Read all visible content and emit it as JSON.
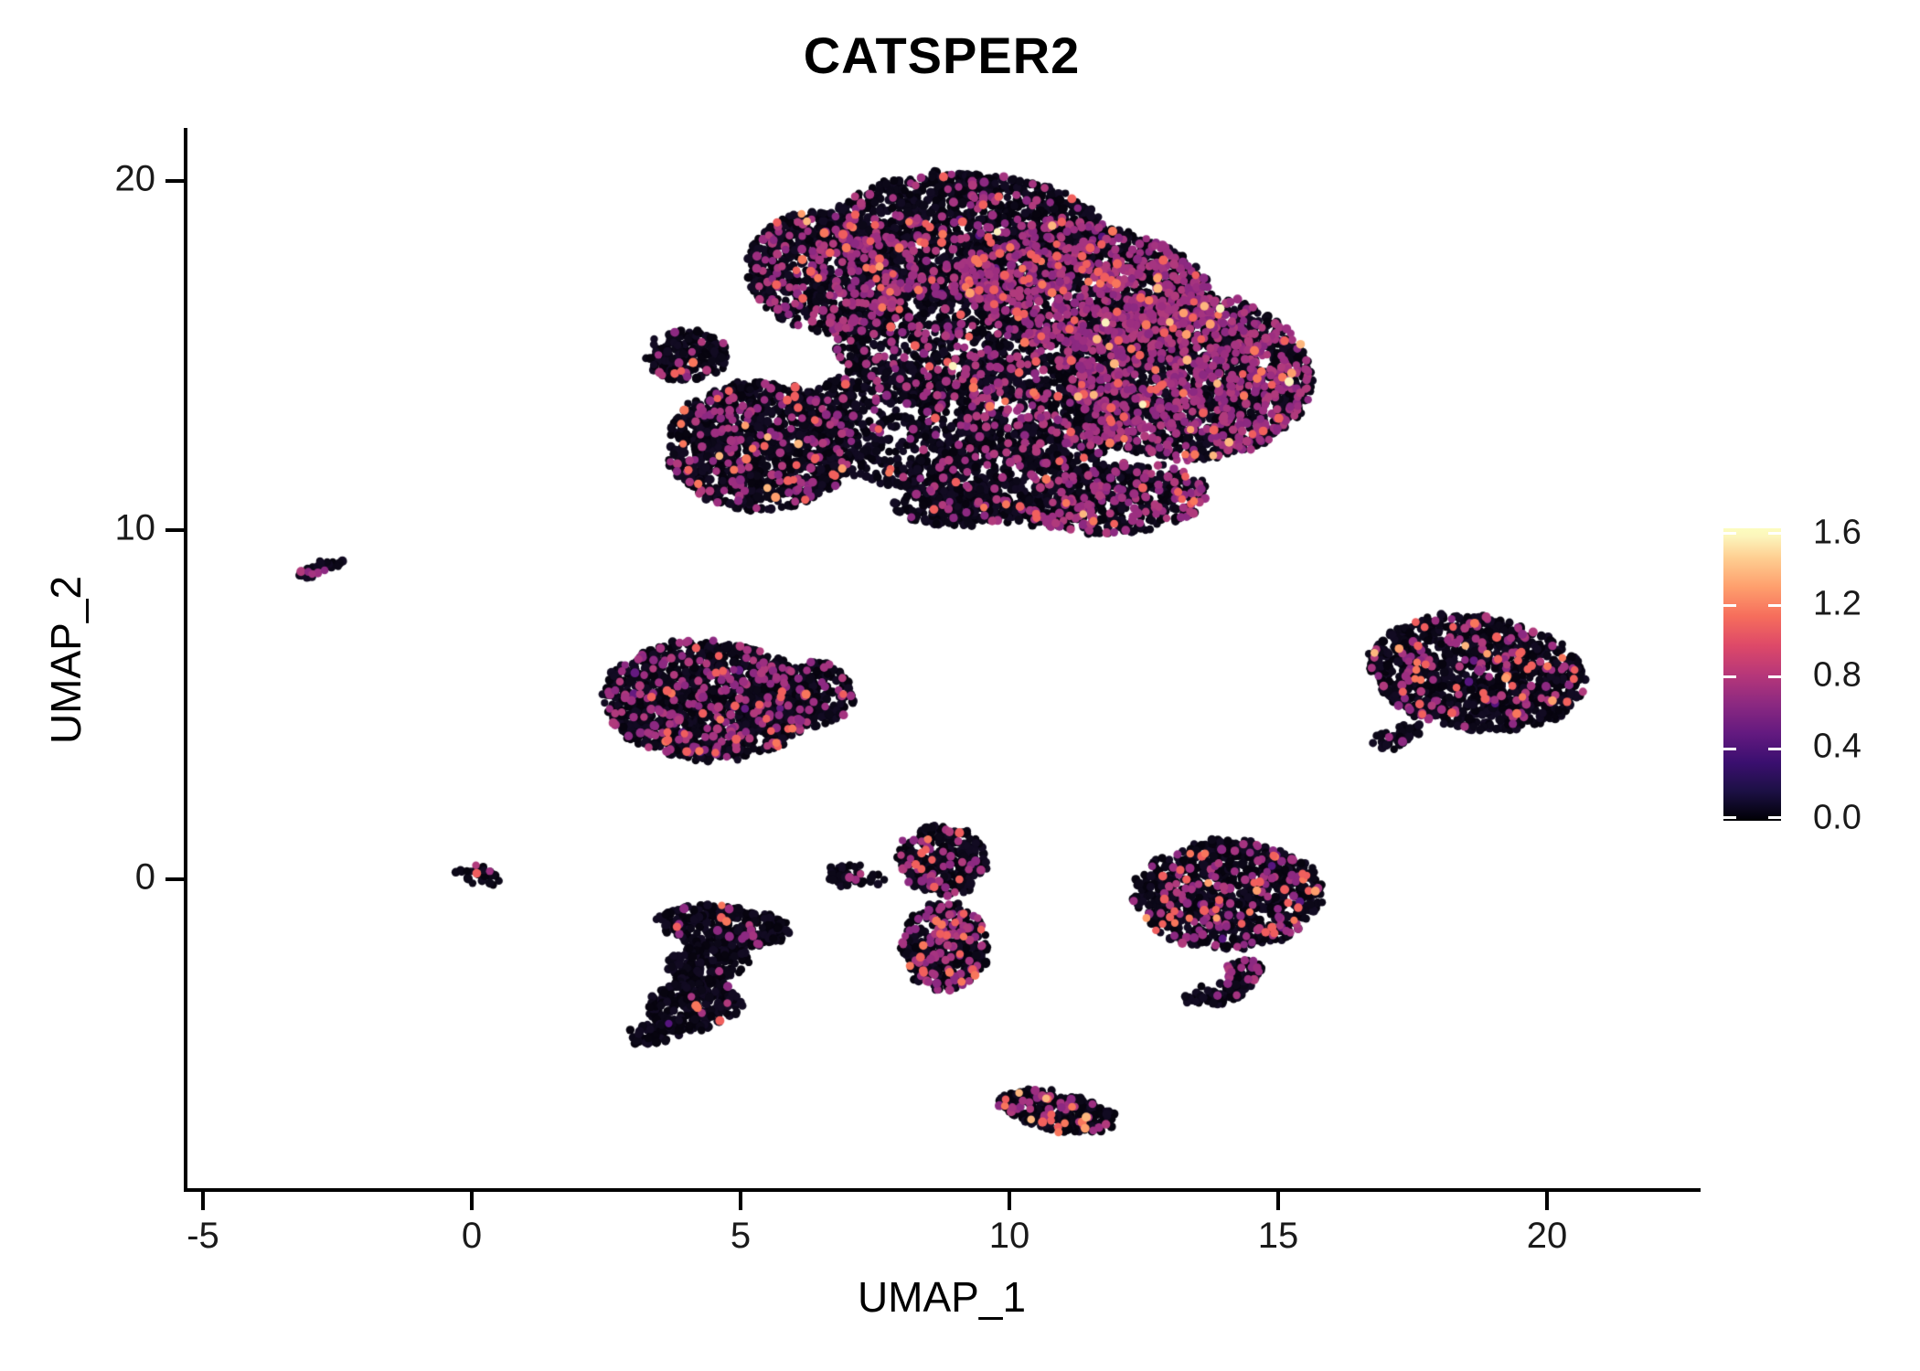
{
  "chart_data": {
    "type": "scatter",
    "subtype": "umap-feature-plot",
    "title": "CATSPER2",
    "xlabel": "UMAP_1",
    "ylabel": "UMAP_2",
    "xlim": [
      -5.3,
      22.5
    ],
    "ylim": [
      -8.9,
      21.5
    ],
    "grid": false,
    "x_ticks": [
      "-5",
      "0",
      "5",
      "10",
      "15",
      "20"
    ],
    "y_ticks": [
      "20",
      "10",
      "0"
    ],
    "colorbar": {
      "position": "right",
      "palette_name": "magma",
      "value_range": [
        0.0,
        1.65
      ],
      "tick_labels": [
        "1.6",
        "1.2",
        "0.8",
        "0.4",
        "0.0"
      ],
      "gradient_stops": [
        "#000004",
        "#1c1044",
        "#3b0f70",
        "#641a80",
        "#8c2981",
        "#b73779",
        "#de4968",
        "#f66e5c",
        "#fe9f6d",
        "#fecf92",
        "#fcfdbf"
      ]
    },
    "point_palette": {
      "black": [
        "#07040f",
        "#0c0818",
        "#120b22"
      ],
      "darkpurple": [
        "#56157e",
        "#641a80"
      ],
      "purple": [
        "#8c2981",
        "#9c2e80",
        "#a53480",
        "#b03a7c"
      ],
      "salmon": [
        "#ef5d5e",
        "#f1605d",
        "#f8765c"
      ],
      "peach": [
        "#fe9f6d",
        "#fdb77e"
      ],
      "cream": [
        "#fbf2bd"
      ]
    },
    "point_order": [
      "black",
      "darkpurple",
      "purple",
      "salmon",
      "peach",
      "cream"
    ],
    "point_radius_px": 4.6,
    "clusters": [
      {
        "name": "large-top-cluster",
        "components": [
          {
            "cx": 9.2,
            "cy": 18.4,
            "rx": 2.6,
            "ry": 1.85,
            "rot": -5,
            "n": 1500,
            "mix": {
              "black": 0.86,
              "purple": 0.12,
              "salmon": 0.016,
              "darkpurple": 0.003,
              "cream": 0.001
            }
          },
          {
            "cx": 6.7,
            "cy": 17.4,
            "rx": 1.55,
            "ry": 1.8,
            "rot": 15,
            "n": 950,
            "mix": {
              "black": 0.795,
              "purple": 0.175,
              "salmon": 0.026,
              "peach": 0.004
            }
          },
          {
            "cx": 5.4,
            "cy": 12.4,
            "rx": 1.75,
            "ry": 1.85,
            "rot": 0,
            "n": 1150,
            "mix": {
              "black": 0.856,
              "purple": 0.11,
              "salmon": 0.028,
              "peach": 0.006
            }
          },
          {
            "cx": 4.0,
            "cy": 15.0,
            "rx": 0.75,
            "ry": 0.7,
            "rot": 20,
            "n": 180,
            "mix": {
              "black": 0.93,
              "purple": 0.06,
              "salmon": 0.01
            }
          },
          {
            "cx": 8.7,
            "cy": 15.6,
            "rx": 2.0,
            "ry": 2.0,
            "rot": 0,
            "n": 900,
            "mix": {
              "black": 0.82,
              "purple": 0.165,
              "salmon": 0.014,
              "cream": 0.001
            }
          },
          {
            "cx": 7.9,
            "cy": 12.9,
            "rx": 1.9,
            "ry": 1.6,
            "rot": -20,
            "n": 520,
            "mix": {
              "black": 0.92,
              "purple": 0.07,
              "salmon": 0.01
            }
          },
          {
            "cx": 9.9,
            "cy": 11.3,
            "rx": 1.9,
            "ry": 1.1,
            "rot": -10,
            "n": 480,
            "mix": {
              "black": 0.9,
              "purple": 0.085,
              "salmon": 0.015
            }
          },
          {
            "cx": 11.4,
            "cy": 16.9,
            "rx": 2.4,
            "ry": 1.8,
            "rot": -18,
            "n": 1500,
            "mix": {
              "black": 0.7,
              "purple": 0.272,
              "salmon": 0.022,
              "peach": 0.005,
              "cream": 0.001
            }
          },
          {
            "cx": 13.3,
            "cy": 14.4,
            "rx": 2.3,
            "ry": 2.4,
            "rot": 12,
            "n": 2100,
            "mix": {
              "black": 0.68,
              "purple": 0.293,
              "salmon": 0.021,
              "peach": 0.005,
              "cream": 0.001
            }
          },
          {
            "cx": 10.7,
            "cy": 13.4,
            "rx": 1.7,
            "ry": 1.6,
            "rot": 0,
            "n": 700,
            "mix": {
              "black": 0.8,
              "purple": 0.182,
              "salmon": 0.016,
              "peach": 0.002
            }
          },
          {
            "cx": 12.0,
            "cy": 10.9,
            "rx": 1.7,
            "ry": 1.0,
            "rot": 8,
            "n": 520,
            "mix": {
              "black": 0.76,
              "purple": 0.22,
              "salmon": 0.018,
              "peach": 0.002
            }
          },
          {
            "cx": 9.0,
            "cy": 10.7,
            "rx": 1.1,
            "ry": 0.6,
            "rot": 0,
            "n": 180,
            "mix": {
              "black": 0.92,
              "purple": 0.06,
              "salmon": 0.02
            }
          }
        ]
      },
      {
        "name": "left-middle-cluster",
        "components": [
          {
            "cx": 4.4,
            "cy": 5.1,
            "rx": 1.95,
            "ry": 1.7,
            "rot": -12,
            "n": 1350,
            "mix": {
              "black": 0.843,
              "purple": 0.135,
              "salmon": 0.018,
              "darkpurple": 0.004
            }
          },
          {
            "cx": 6.1,
            "cy": 5.3,
            "rx": 1.0,
            "ry": 1.0,
            "rot": 0,
            "n": 320,
            "mix": {
              "black": 0.9,
              "purple": 0.09,
              "salmon": 0.01
            }
          }
        ]
      },
      {
        "name": "right-cluster",
        "components": [
          {
            "cx": 18.7,
            "cy": 5.9,
            "rx": 2.05,
            "ry": 1.6,
            "rot": -18,
            "n": 1150,
            "mix": {
              "black": 0.872,
              "purple": 0.09,
              "salmon": 0.027,
              "peach": 0.007,
              "darkpurple": 0.004
            }
          },
          {
            "cx": 17.25,
            "cy": 4.1,
            "rx": 0.55,
            "ry": 0.3,
            "rot": 30,
            "n": 45,
            "mix": {
              "black": 0.97,
              "purple": 0.03
            }
          }
        ]
      },
      {
        "name": "right-middle-cluster-with-hook",
        "components": [
          {
            "cx": 14.05,
            "cy": -0.45,
            "rx": 1.75,
            "ry": 1.55,
            "rot": 0,
            "n": 950,
            "mix": {
              "black": 0.852,
              "purple": 0.105,
              "salmon": 0.032,
              "peach": 0.007,
              "darkpurple": 0.004
            }
          },
          {
            "cx": 13.75,
            "cy": -3.35,
            "rx": 0.55,
            "ry": 0.22,
            "rot": 5,
            "n": 55,
            "mix": {
              "black": 0.98,
              "purple": 0.02
            }
          },
          {
            "cx": 14.3,
            "cy": -2.75,
            "rx": 0.33,
            "ry": 0.5,
            "rot": -35,
            "n": 70,
            "mix": {
              "black": 0.79,
              "purple": 0.2,
              "salmon": 0.01
            }
          }
        ]
      },
      {
        "name": "center-vertical-cluster",
        "components": [
          {
            "cx": 8.75,
            "cy": 0.55,
            "rx": 0.8,
            "ry": 1.0,
            "rot": 0,
            "n": 330,
            "mix": {
              "black": 0.88,
              "purple": 0.102,
              "salmon": 0.018
            }
          },
          {
            "cx": 8.8,
            "cy": -1.95,
            "rx": 0.8,
            "ry": 1.25,
            "rot": 0,
            "n": 420,
            "mix": {
              "black": 0.815,
              "purple": 0.148,
              "salmon": 0.037
            }
          }
        ]
      },
      {
        "name": "lower-left-s-cluster",
        "components": [
          {
            "cx": 4.7,
            "cy": -1.35,
            "rx": 1.25,
            "ry": 0.6,
            "rot": -8,
            "n": 300,
            "mix": {
              "black": 0.953,
              "purple": 0.037,
              "salmon": 0.01
            }
          },
          {
            "cx": 4.35,
            "cy": -2.4,
            "rx": 0.8,
            "ry": 0.55,
            "rot": 15,
            "n": 150,
            "mix": {
              "black": 0.967,
              "purple": 0.02,
              "salmon": 0.013
            }
          },
          {
            "cx": 4.15,
            "cy": -3.6,
            "rx": 0.9,
            "ry": 0.7,
            "rot": 25,
            "n": 240,
            "mix": {
              "black": 0.97,
              "purple": 0.02,
              "salmon": 0.01
            }
          },
          {
            "cx": 3.5,
            "cy": -4.35,
            "rx": 0.6,
            "ry": 0.35,
            "rot": 20,
            "n": 70,
            "mix": {
              "black": 0.97,
              "darkpurple": 0.03
            }
          }
        ]
      },
      {
        "name": "small-arc-fragments",
        "components": [
          {
            "cx": 6.9,
            "cy": 0.2,
            "rx": 0.3,
            "ry": 0.42,
            "rot": 10,
            "n": 38,
            "mix": {
              "black": 0.95,
              "purple": 0.05
            }
          },
          {
            "cx": 7.45,
            "cy": 0.0,
            "rx": 0.25,
            "ry": 0.2,
            "rot": 0,
            "n": 10,
            "mix": {
              "black": 1
            }
          }
        ]
      },
      {
        "name": "tiny-origin-cluster",
        "components": [
          {
            "cx": 0.1,
            "cy": 0.12,
            "rx": 0.45,
            "ry": 0.26,
            "rot": -15,
            "n": 26,
            "mix": {
              "black": 0.8,
              "purple": 0.12,
              "salmon": 0.08
            }
          }
        ]
      },
      {
        "name": "small-dash-cluster",
        "components": [
          {
            "cx": -2.85,
            "cy": 8.9,
            "rx": 0.5,
            "ry": 0.16,
            "rot": 33,
            "n": 34,
            "mix": {
              "black": 0.82,
              "purple": 0.18
            }
          }
        ]
      },
      {
        "name": "bottom-elongated-cluster",
        "components": [
          {
            "cx": 10.9,
            "cy": -6.65,
            "rx": 1.1,
            "ry": 0.52,
            "rot": -18,
            "n": 330,
            "mix": {
              "black": 0.883,
              "purple": 0.075,
              "salmon": 0.032,
              "peach": 0.01
            }
          }
        ]
      }
    ]
  }
}
